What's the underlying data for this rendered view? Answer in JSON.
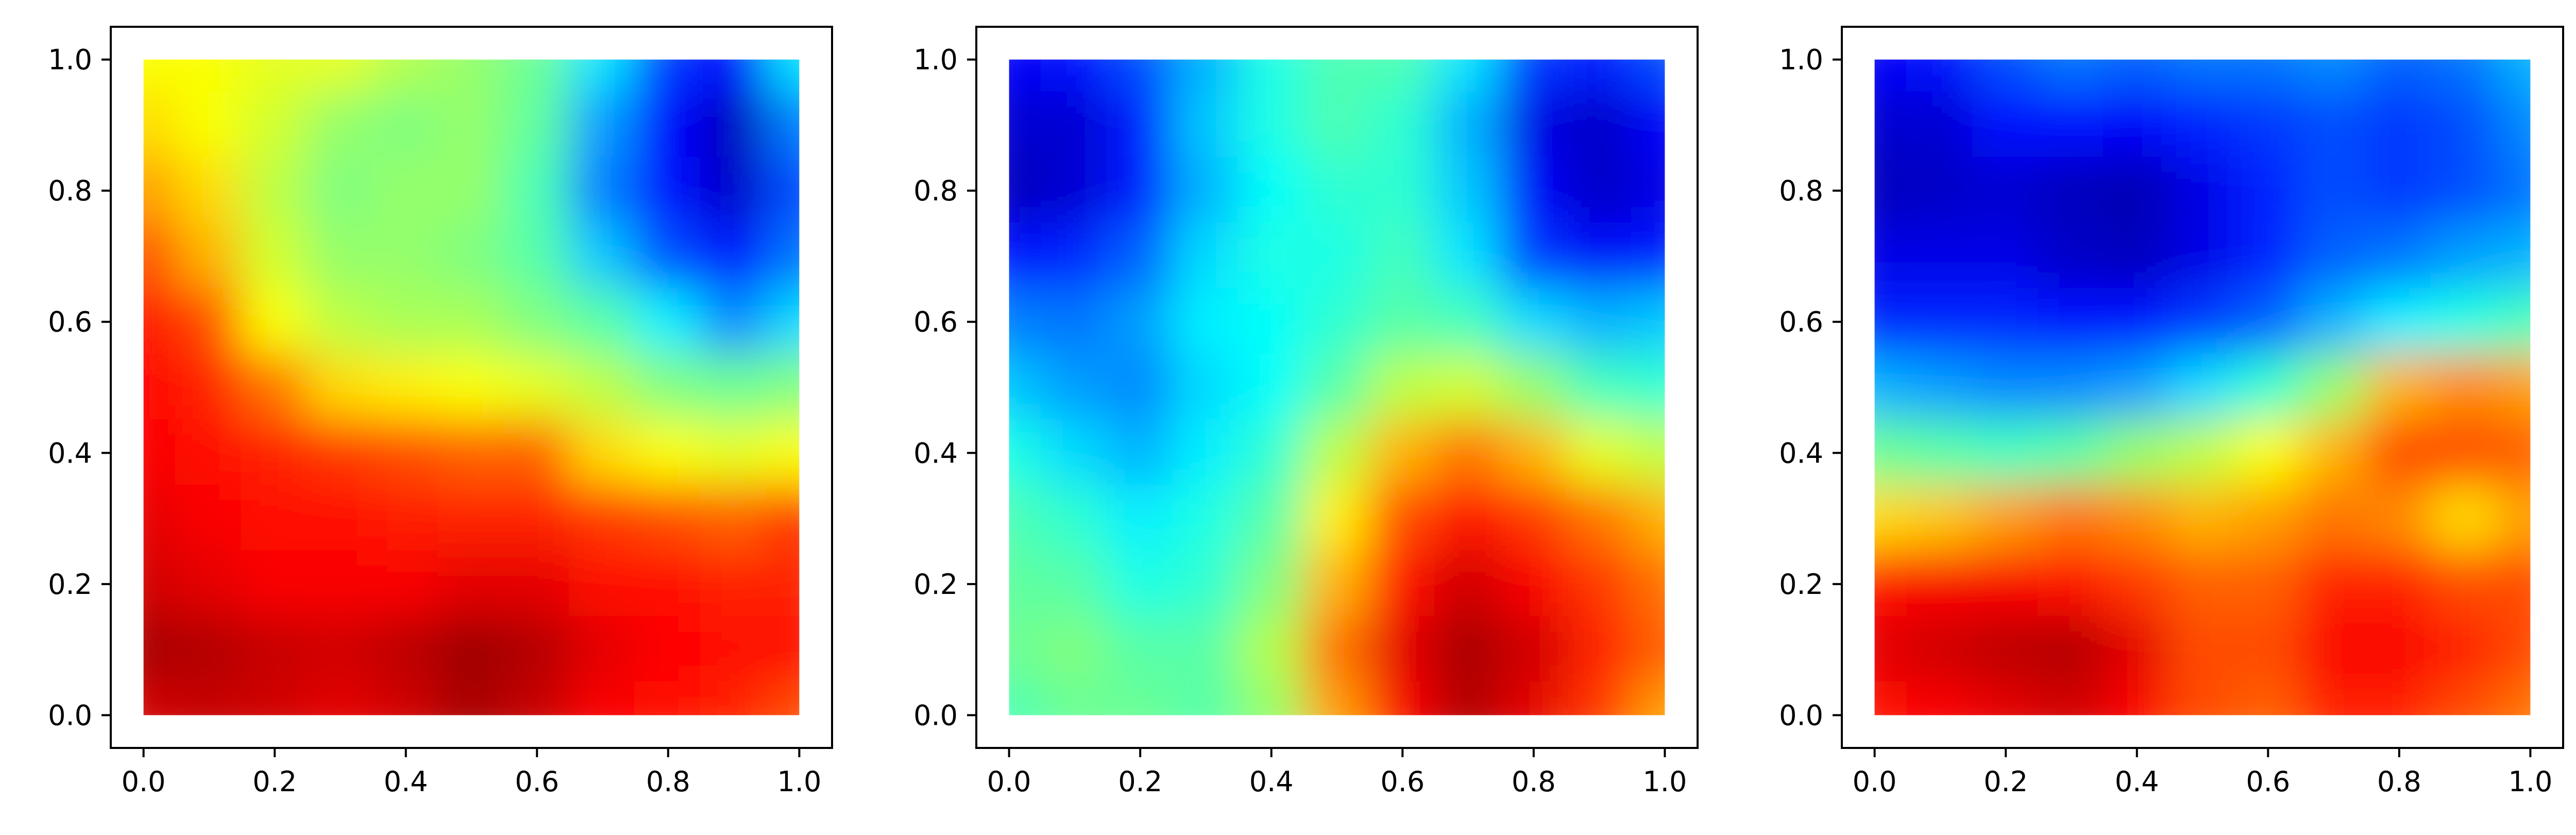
{
  "chart_data": [
    {
      "type": "heatmap",
      "colormap": "jet",
      "xlim": [
        0.0,
        1.0
      ],
      "ylim": [
        0.0,
        1.0
      ],
      "xticks": [
        "0.0",
        "0.2",
        "0.4",
        "0.6",
        "0.8",
        "1.0"
      ],
      "yticks": [
        "0.0",
        "0.2",
        "0.4",
        "0.6",
        "0.8",
        "1.0"
      ],
      "grid": false,
      "x": [
        0.0,
        0.1,
        0.2,
        0.3,
        0.4,
        0.5,
        0.6,
        0.7,
        0.8,
        0.9,
        1.0
      ],
      "y": [
        1.0,
        0.9,
        0.8,
        0.7,
        0.6,
        0.5,
        0.4,
        0.3,
        0.2,
        0.1,
        0.0
      ],
      "z": [
        [
          0.62,
          0.62,
          0.6,
          0.6,
          0.55,
          0.52,
          0.48,
          0.35,
          0.18,
          0.13,
          0.35
        ],
        [
          0.66,
          0.62,
          0.58,
          0.52,
          0.5,
          0.52,
          0.47,
          0.28,
          0.13,
          0.06,
          0.25
        ],
        [
          0.72,
          0.66,
          0.56,
          0.5,
          0.52,
          0.52,
          0.45,
          0.25,
          0.14,
          0.07,
          0.2
        ],
        [
          0.8,
          0.7,
          0.58,
          0.52,
          0.52,
          0.5,
          0.46,
          0.32,
          0.2,
          0.14,
          0.24
        ],
        [
          0.86,
          0.8,
          0.62,
          0.56,
          0.54,
          0.54,
          0.5,
          0.46,
          0.36,
          0.26,
          0.34
        ],
        [
          0.87,
          0.84,
          0.76,
          0.66,
          0.64,
          0.62,
          0.6,
          0.56,
          0.5,
          0.48,
          0.5
        ],
        [
          0.88,
          0.86,
          0.84,
          0.82,
          0.8,
          0.78,
          0.78,
          0.66,
          0.62,
          0.6,
          0.62
        ],
        [
          0.9,
          0.88,
          0.86,
          0.86,
          0.85,
          0.84,
          0.84,
          0.82,
          0.8,
          0.78,
          0.82
        ],
        [
          0.92,
          0.9,
          0.88,
          0.88,
          0.88,
          0.9,
          0.9,
          0.86,
          0.86,
          0.84,
          0.84
        ],
        [
          0.96,
          0.95,
          0.93,
          0.92,
          0.94,
          0.97,
          0.95,
          0.9,
          0.87,
          0.86,
          0.86
        ],
        [
          0.92,
          0.93,
          0.92,
          0.9,
          0.92,
          0.96,
          0.93,
          0.88,
          0.86,
          0.84,
          0.8
        ]
      ]
    },
    {
      "type": "heatmap",
      "colormap": "jet",
      "xlim": [
        0.0,
        1.0
      ],
      "ylim": [
        0.0,
        1.0
      ],
      "xticks": [
        "0.0",
        "0.2",
        "0.4",
        "0.6",
        "0.8",
        "1.0"
      ],
      "yticks": [
        "0.0",
        "0.2",
        "0.4",
        "0.6",
        "0.8",
        "1.0"
      ],
      "grid": false,
      "x": [
        0.0,
        0.1,
        0.2,
        0.3,
        0.4,
        0.5,
        0.6,
        0.7,
        0.8,
        0.9,
        1.0
      ],
      "y": [
        1.0,
        0.9,
        0.8,
        0.7,
        0.6,
        0.5,
        0.4,
        0.3,
        0.2,
        0.1,
        0.0
      ],
      "z": [
        [
          0.12,
          0.14,
          0.2,
          0.3,
          0.4,
          0.45,
          0.45,
          0.35,
          0.18,
          0.15,
          0.2
        ],
        [
          0.08,
          0.08,
          0.15,
          0.32,
          0.4,
          0.45,
          0.42,
          0.3,
          0.1,
          0.07,
          0.12
        ],
        [
          0.06,
          0.08,
          0.15,
          0.3,
          0.38,
          0.42,
          0.42,
          0.32,
          0.12,
          0.07,
          0.1
        ],
        [
          0.14,
          0.16,
          0.22,
          0.34,
          0.4,
          0.4,
          0.44,
          0.35,
          0.18,
          0.12,
          0.15
        ],
        [
          0.25,
          0.24,
          0.28,
          0.36,
          0.38,
          0.42,
          0.46,
          0.44,
          0.34,
          0.3,
          0.32
        ],
        [
          0.32,
          0.28,
          0.26,
          0.34,
          0.38,
          0.46,
          0.56,
          0.58,
          0.52,
          0.44,
          0.42
        ],
        [
          0.4,
          0.34,
          0.3,
          0.36,
          0.42,
          0.56,
          0.7,
          0.76,
          0.7,
          0.6,
          0.56
        ],
        [
          0.45,
          0.42,
          0.36,
          0.4,
          0.46,
          0.64,
          0.8,
          0.86,
          0.82,
          0.76,
          0.7
        ],
        [
          0.47,
          0.46,
          0.4,
          0.42,
          0.5,
          0.7,
          0.86,
          0.92,
          0.88,
          0.82,
          0.76
        ],
        [
          0.48,
          0.5,
          0.46,
          0.46,
          0.55,
          0.76,
          0.9,
          0.96,
          0.92,
          0.84,
          0.78
        ],
        [
          0.45,
          0.48,
          0.48,
          0.46,
          0.52,
          0.72,
          0.88,
          0.95,
          0.9,
          0.82,
          0.72
        ]
      ]
    },
    {
      "type": "heatmap",
      "colormap": "jet",
      "xlim": [
        0.0,
        1.0
      ],
      "ylim": [
        0.0,
        1.0
      ],
      "xticks": [
        "0.0",
        "0.2",
        "0.4",
        "0.6",
        "0.8",
        "1.0"
      ],
      "yticks": [
        "0.0",
        "0.2",
        "0.4",
        "0.6",
        "0.8",
        "1.0"
      ],
      "grid": false,
      "x": [
        0.0,
        0.1,
        0.2,
        0.3,
        0.4,
        0.5,
        0.6,
        0.7,
        0.8,
        0.9,
        1.0
      ],
      "y": [
        1.0,
        0.9,
        0.8,
        0.7,
        0.6,
        0.5,
        0.4,
        0.3,
        0.2,
        0.1,
        0.0
      ],
      "z": [
        [
          0.12,
          0.14,
          0.2,
          0.24,
          0.22,
          0.24,
          0.24,
          0.26,
          0.22,
          0.24,
          0.3
        ],
        [
          0.08,
          0.08,
          0.14,
          0.14,
          0.12,
          0.16,
          0.18,
          0.2,
          0.18,
          0.2,
          0.26
        ],
        [
          0.06,
          0.07,
          0.08,
          0.06,
          0.05,
          0.1,
          0.16,
          0.2,
          0.18,
          0.2,
          0.24
        ],
        [
          0.1,
          0.1,
          0.1,
          0.07,
          0.06,
          0.1,
          0.16,
          0.22,
          0.24,
          0.28,
          0.3
        ],
        [
          0.16,
          0.16,
          0.16,
          0.14,
          0.14,
          0.18,
          0.22,
          0.3,
          0.36,
          0.4,
          0.44
        ],
        [
          0.3,
          0.28,
          0.26,
          0.26,
          0.28,
          0.34,
          0.42,
          0.52,
          0.7,
          0.74,
          0.72
        ],
        [
          0.48,
          0.46,
          0.44,
          0.46,
          0.52,
          0.56,
          0.62,
          0.7,
          0.8,
          0.8,
          0.78
        ],
        [
          0.66,
          0.68,
          0.72,
          0.76,
          0.74,
          0.7,
          0.72,
          0.76,
          0.74,
          0.66,
          0.72
        ],
        [
          0.86,
          0.88,
          0.88,
          0.86,
          0.82,
          0.78,
          0.78,
          0.84,
          0.84,
          0.8,
          0.8
        ],
        [
          0.9,
          0.92,
          0.94,
          0.95,
          0.9,
          0.8,
          0.8,
          0.88,
          0.88,
          0.84,
          0.8
        ],
        [
          0.86,
          0.88,
          0.9,
          0.92,
          0.88,
          0.8,
          0.78,
          0.84,
          0.84,
          0.8,
          0.76
        ]
      ]
    }
  ]
}
